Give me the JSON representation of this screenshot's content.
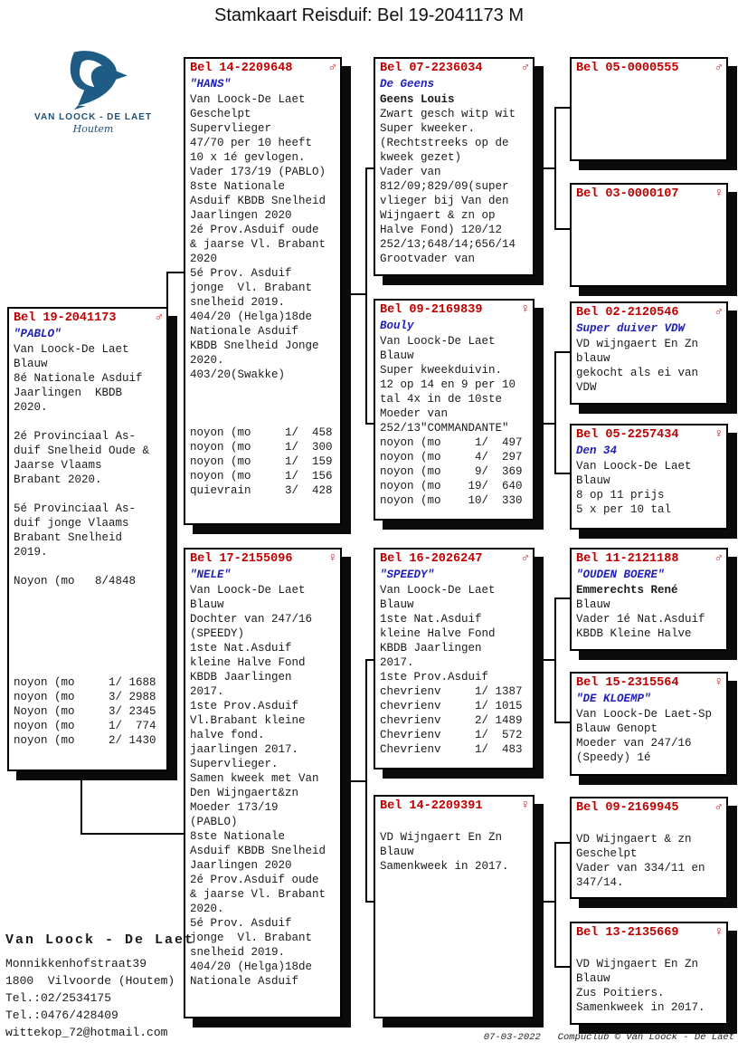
{
  "title": "Stamkaart Reisduif: Bel 19-2041173 M",
  "logo": {
    "name": "VAN LOOCK - DE LAET",
    "town": "Houtem",
    "color": "#1e5c85"
  },
  "colors": {
    "ring_red": "#c00000",
    "name_blue": "#2121b8",
    "body_black": "#1a1a1a"
  },
  "sex_symbols": {
    "male": "♂",
    "female": "♀"
  },
  "boxes": [
    {
      "id": "subject",
      "ring": "Bel 19-2041173",
      "sex": "male",
      "name": "\"PABLO\"",
      "lines": [
        "Van Loock-De Laet",
        "Blauw",
        "8é Nationale Asduif",
        "Jaarlingen  KBDB",
        "2020.",
        "",
        "2é Provinciaal As-",
        "duif Snelheid Oude &",
        "Jaarse Vlaams",
        "Brabant 2020.",
        "",
        "5é Provinciaal As-",
        "duif jonge Vlaams",
        "Brabant Snelheid",
        "2019.",
        "",
        "Noyon (mo   8/4848",
        "",
        "",
        "",
        "",
        "",
        "",
        "noyon (mo     1/ 1688",
        "noyon (mo     3/ 2988",
        "Noyon (mo     3/ 2345",
        "noyon (mo     1/  774",
        "noyon (mo     2/ 1430"
      ]
    },
    {
      "id": "father",
      "ring": "Bel 14-2209648",
      "sex": "male",
      "name": "\"HANS\"",
      "lines": [
        "Van Loock-De Laet",
        "Geschelpt",
        "Supervlieger",
        "47/70 per 10 heeft",
        "10 x 1é gevlogen.",
        "Vader 173/19 (PABLO)",
        "8ste Nationale",
        "Asduif KBDB Snelheid",
        "Jaarlingen 2020",
        "2é Prov.Asduif oude",
        "& jaarse Vl. Brabant",
        "2020",
        "5é Prov. Asduif",
        "jonge  Vl. Brabant",
        "snelheid 2019.",
        "404/20 (Helga)18de",
        "Nationale Asduif",
        "KBDB Snelheid Jonge",
        "2020.",
        "403/20(Swakke)",
        "",
        "",
        "",
        "noyon (mo     1/  458",
        "noyon (mo     1/  300",
        "noyon (mo     1/  159",
        "noyon (mo     1/  156",
        "quievrain     3/  428"
      ]
    },
    {
      "id": "mother",
      "ring": "Bel 17-2155096",
      "sex": "female",
      "name": "\"NELE\"",
      "lines": [
        "Van Loock-De Laet",
        "Blauw",
        "Dochter van 247/16",
        "(SPEEDY)",
        "1ste Nat.Asduif",
        "kleine Halve Fond",
        "KBDB Jaarlingen",
        "2017.",
        "1ste Prov.Asduif",
        "Vl.Brabant kleine",
        "halve fond.",
        "jaarlingen 2017.",
        "Supervlieger.",
        "Samen kweek met Van",
        "Den Wijngaert&zn",
        "Moeder 173/19",
        "(PABLO)",
        "8ste Nationale",
        "Asduif KBDB Snelheid",
        "Jaarlingen 2020",
        "2é Prov.Asduif oude",
        "& jaarse Vl. Brabant",
        "2020.",
        "5é Prov. Asduif",
        "jonge  Vl. Brabant",
        "snelheid 2019.",
        "404/20 (Helga)18de",
        "Nationale Asduif"
      ]
    },
    {
      "id": "ff",
      "ring": "Bel 07-2236034",
      "sex": "male",
      "name": "De Geens",
      "bold_lines": [
        0
      ],
      "lines": [
        "Geens Louis",
        "Zwart gesch witp wit",
        "Super kweeker.",
        "(Rechtstreeks op de",
        "kweek gezet)",
        "Vader van",
        "812/09;829/09(super",
        "vlieger bij Van den",
        "Wijngaert & zn op",
        "Halve Fond) 120/12",
        "252/13;648/14;656/14",
        "Grootvader van"
      ]
    },
    {
      "id": "fm",
      "ring": "Bel 09-2169839",
      "sex": "female",
      "name": "Bouly",
      "lines": [
        "Van Loock-De Laet",
        "Blauw",
        "Super kweekduivin.",
        "12 op 14 en 9 per 10",
        "tal 4x in de 10ste",
        "Moeder van",
        "252/13\"COMMANDANTE\"",
        "noyon (mo     1/  497",
        "noyon (mo     4/  297",
        "noyon (mo     9/  369",
        "noyon (mo    19/  640",
        "noyon (mo    10/  330"
      ]
    },
    {
      "id": "mf",
      "ring": "Bel 16-2026247",
      "sex": "male",
      "name": "\"SPEEDY\"",
      "lines": [
        "Van Loock-De Laet",
        "Blauw",
        "1ste Nat.Asduif",
        "kleine Halve Fond",
        "KBDB Jaarlingen",
        "2017.",
        "1ste Prov.Asduif",
        "chevrienv     1/ 1387",
        "chevrienv     1/ 1015",
        "chevrienv     2/ 1489",
        "Chevrienv     1/  572",
        "Chevrienv     1/  483"
      ]
    },
    {
      "id": "mm",
      "ring": "Bel 14-2209391",
      "sex": "female",
      "name": "",
      "lines": [
        "VD Wijngaert En Zn",
        "Blauw",
        "Samenkweek in 2017."
      ]
    },
    {
      "id": "fff",
      "ring": "Bel 05-0000555",
      "sex": "male",
      "name": "",
      "lines": []
    },
    {
      "id": "ffm",
      "ring": "Bel 03-0000107",
      "sex": "female",
      "name": "",
      "lines": []
    },
    {
      "id": "fmf",
      "ring": "Bel 02-2120546",
      "sex": "male",
      "name": "Super duiver VDW",
      "lines": [
        "VD wijngaert En Zn",
        "blauw",
        "gekocht als ei van",
        "VDW"
      ]
    },
    {
      "id": "fmm",
      "ring": "Bel 05-2257434",
      "sex": "female",
      "name": "Den 34",
      "lines": [
        "Van Loock-De Laet",
        "Blauw",
        "8 op 11 prijs",
        "5 x per 10 tal"
      ]
    },
    {
      "id": "mff",
      "ring": "Bel 11-2121188",
      "sex": "male",
      "name": "\"OUDEN BOERE\"",
      "bold_lines": [
        0
      ],
      "lines": [
        "Emmerechts René",
        "Blauw",
        "Vader 1é Nat.Asduif",
        "KBDB Kleine Halve"
      ]
    },
    {
      "id": "mfm",
      "ring": "Bel 15-2315564",
      "sex": "female",
      "name": "\"DE KLOEMP\"",
      "lines": [
        "Van Loock-De Laet-Sp",
        "Blauw Genopt",
        "Moeder van 247/16",
        "(Speedy) 1é"
      ]
    },
    {
      "id": "mmf",
      "ring": "Bel 09-2169945",
      "sex": "male",
      "name": "",
      "lines": [
        "VD Wijngaert & zn",
        "Geschelpt",
        "Vader van 334/11 en",
        "347/14."
      ]
    },
    {
      "id": "mmm",
      "ring": "Bel 13-2135669",
      "sex": "female",
      "name": "",
      "lines": [
        "VD Wijngaert En Zn",
        "Blauw",
        "Zus Poitiers.",
        "Samenkweek in 2017."
      ]
    }
  ],
  "owner": {
    "name": "Van Loock - De Laet",
    "lines": [
      "Monnikkenhofstraat39",
      "1800  Vilvoorde (Houtem)",
      "Tel.:02/2534175",
      "Tel.:0476/428409",
      "wittekop_72@hotmail.com"
    ]
  },
  "footer": "07-03-2022   Compuclub © Van Loock - De Laet"
}
